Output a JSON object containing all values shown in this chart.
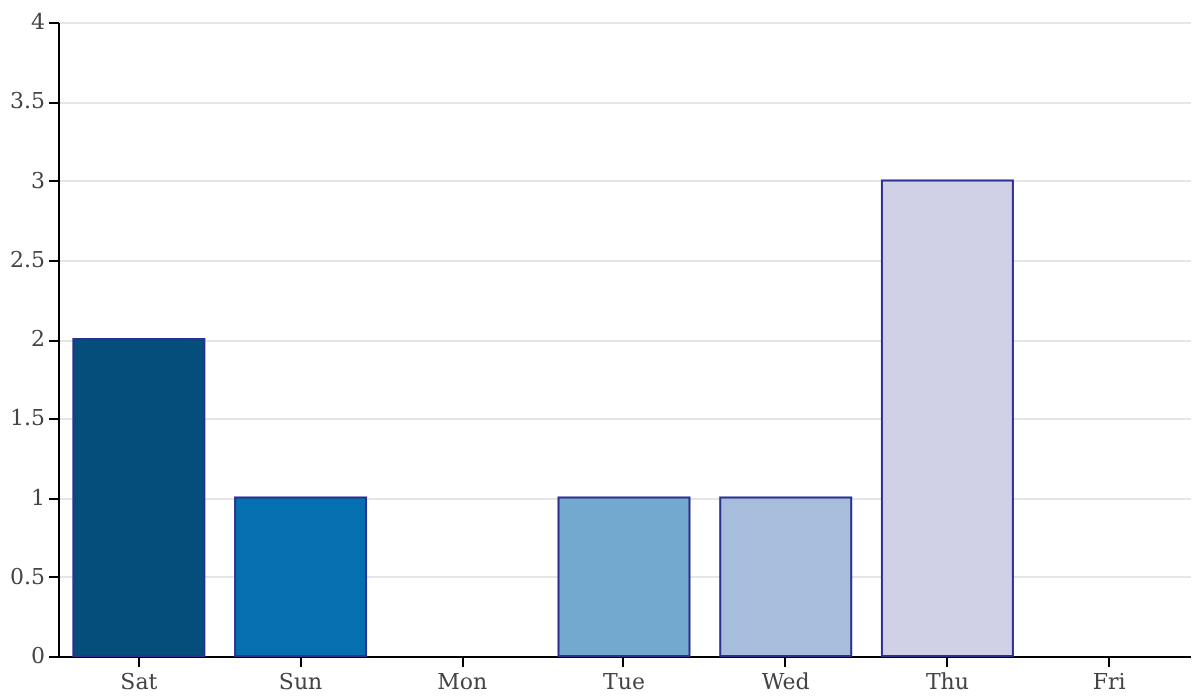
{
  "chart_data": {
    "type": "bar",
    "categories": [
      "Sat",
      "Sun",
      "Mon",
      "Tue",
      "Wed",
      "Thu",
      "Fri"
    ],
    "values": [
      2,
      1,
      0,
      1,
      1,
      3,
      0
    ],
    "colors": [
      "#034e7b",
      "#0570b0",
      "#3690c0",
      "#74a9cf",
      "#a6bddb",
      "#d0d1e6",
      "#f1eef6"
    ],
    "ylim": [
      0,
      4
    ],
    "yticks": [
      0,
      0.5,
      1,
      1.5,
      2,
      2.5,
      3,
      3.5,
      4
    ],
    "grid": "y"
  }
}
